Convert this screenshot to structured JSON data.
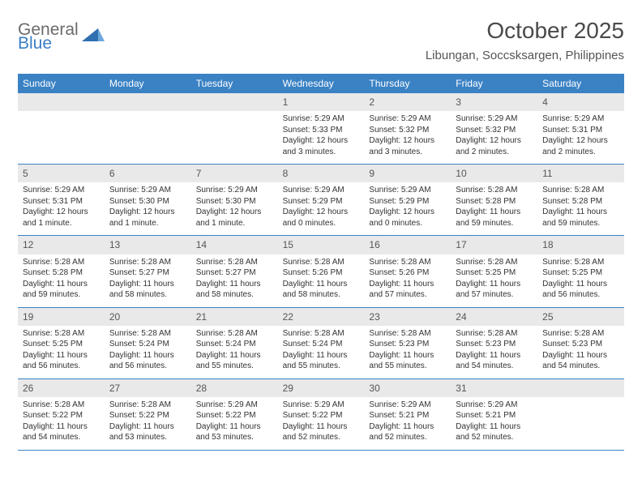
{
  "logo": {
    "line1": "General",
    "line2": "Blue"
  },
  "title": "October 2025",
  "location": "Libungan, Soccsksargen, Philippines",
  "colors": {
    "header_bg": "#3b82c4",
    "header_text": "#ffffff",
    "daynum_bg": "#e9e9e9",
    "week_border": "#3b82c4",
    "body_text": "#333333",
    "title_text": "#4a4a4a",
    "logo_gray": "#6b6b6b",
    "logo_blue": "#3b7fc4"
  },
  "day_labels": [
    "Sunday",
    "Monday",
    "Tuesday",
    "Wednesday",
    "Thursday",
    "Friday",
    "Saturday"
  ],
  "weeks": [
    [
      {
        "n": "",
        "empty": true
      },
      {
        "n": "",
        "empty": true
      },
      {
        "n": "",
        "empty": true
      },
      {
        "n": "1",
        "sunrise": "Sunrise: 5:29 AM",
        "sunset": "Sunset: 5:33 PM",
        "daylight": "Daylight: 12 hours and 3 minutes."
      },
      {
        "n": "2",
        "sunrise": "Sunrise: 5:29 AM",
        "sunset": "Sunset: 5:32 PM",
        "daylight": "Daylight: 12 hours and 3 minutes."
      },
      {
        "n": "3",
        "sunrise": "Sunrise: 5:29 AM",
        "sunset": "Sunset: 5:32 PM",
        "daylight": "Daylight: 12 hours and 2 minutes."
      },
      {
        "n": "4",
        "sunrise": "Sunrise: 5:29 AM",
        "sunset": "Sunset: 5:31 PM",
        "daylight": "Daylight: 12 hours and 2 minutes."
      }
    ],
    [
      {
        "n": "5",
        "sunrise": "Sunrise: 5:29 AM",
        "sunset": "Sunset: 5:31 PM",
        "daylight": "Daylight: 12 hours and 1 minute."
      },
      {
        "n": "6",
        "sunrise": "Sunrise: 5:29 AM",
        "sunset": "Sunset: 5:30 PM",
        "daylight": "Daylight: 12 hours and 1 minute."
      },
      {
        "n": "7",
        "sunrise": "Sunrise: 5:29 AM",
        "sunset": "Sunset: 5:30 PM",
        "daylight": "Daylight: 12 hours and 1 minute."
      },
      {
        "n": "8",
        "sunrise": "Sunrise: 5:29 AM",
        "sunset": "Sunset: 5:29 PM",
        "daylight": "Daylight: 12 hours and 0 minutes."
      },
      {
        "n": "9",
        "sunrise": "Sunrise: 5:29 AM",
        "sunset": "Sunset: 5:29 PM",
        "daylight": "Daylight: 12 hours and 0 minutes."
      },
      {
        "n": "10",
        "sunrise": "Sunrise: 5:28 AM",
        "sunset": "Sunset: 5:28 PM",
        "daylight": "Daylight: 11 hours and 59 minutes."
      },
      {
        "n": "11",
        "sunrise": "Sunrise: 5:28 AM",
        "sunset": "Sunset: 5:28 PM",
        "daylight": "Daylight: 11 hours and 59 minutes."
      }
    ],
    [
      {
        "n": "12",
        "sunrise": "Sunrise: 5:28 AM",
        "sunset": "Sunset: 5:28 PM",
        "daylight": "Daylight: 11 hours and 59 minutes."
      },
      {
        "n": "13",
        "sunrise": "Sunrise: 5:28 AM",
        "sunset": "Sunset: 5:27 PM",
        "daylight": "Daylight: 11 hours and 58 minutes."
      },
      {
        "n": "14",
        "sunrise": "Sunrise: 5:28 AM",
        "sunset": "Sunset: 5:27 PM",
        "daylight": "Daylight: 11 hours and 58 minutes."
      },
      {
        "n": "15",
        "sunrise": "Sunrise: 5:28 AM",
        "sunset": "Sunset: 5:26 PM",
        "daylight": "Daylight: 11 hours and 58 minutes."
      },
      {
        "n": "16",
        "sunrise": "Sunrise: 5:28 AM",
        "sunset": "Sunset: 5:26 PM",
        "daylight": "Daylight: 11 hours and 57 minutes."
      },
      {
        "n": "17",
        "sunrise": "Sunrise: 5:28 AM",
        "sunset": "Sunset: 5:25 PM",
        "daylight": "Daylight: 11 hours and 57 minutes."
      },
      {
        "n": "18",
        "sunrise": "Sunrise: 5:28 AM",
        "sunset": "Sunset: 5:25 PM",
        "daylight": "Daylight: 11 hours and 56 minutes."
      }
    ],
    [
      {
        "n": "19",
        "sunrise": "Sunrise: 5:28 AM",
        "sunset": "Sunset: 5:25 PM",
        "daylight": "Daylight: 11 hours and 56 minutes."
      },
      {
        "n": "20",
        "sunrise": "Sunrise: 5:28 AM",
        "sunset": "Sunset: 5:24 PM",
        "daylight": "Daylight: 11 hours and 56 minutes."
      },
      {
        "n": "21",
        "sunrise": "Sunrise: 5:28 AM",
        "sunset": "Sunset: 5:24 PM",
        "daylight": "Daylight: 11 hours and 55 minutes."
      },
      {
        "n": "22",
        "sunrise": "Sunrise: 5:28 AM",
        "sunset": "Sunset: 5:24 PM",
        "daylight": "Daylight: 11 hours and 55 minutes."
      },
      {
        "n": "23",
        "sunrise": "Sunrise: 5:28 AM",
        "sunset": "Sunset: 5:23 PM",
        "daylight": "Daylight: 11 hours and 55 minutes."
      },
      {
        "n": "24",
        "sunrise": "Sunrise: 5:28 AM",
        "sunset": "Sunset: 5:23 PM",
        "daylight": "Daylight: 11 hours and 54 minutes."
      },
      {
        "n": "25",
        "sunrise": "Sunrise: 5:28 AM",
        "sunset": "Sunset: 5:23 PM",
        "daylight": "Daylight: 11 hours and 54 minutes."
      }
    ],
    [
      {
        "n": "26",
        "sunrise": "Sunrise: 5:28 AM",
        "sunset": "Sunset: 5:22 PM",
        "daylight": "Daylight: 11 hours and 54 minutes."
      },
      {
        "n": "27",
        "sunrise": "Sunrise: 5:28 AM",
        "sunset": "Sunset: 5:22 PM",
        "daylight": "Daylight: 11 hours and 53 minutes."
      },
      {
        "n": "28",
        "sunrise": "Sunrise: 5:29 AM",
        "sunset": "Sunset: 5:22 PM",
        "daylight": "Daylight: 11 hours and 53 minutes."
      },
      {
        "n": "29",
        "sunrise": "Sunrise: 5:29 AM",
        "sunset": "Sunset: 5:22 PM",
        "daylight": "Daylight: 11 hours and 52 minutes."
      },
      {
        "n": "30",
        "sunrise": "Sunrise: 5:29 AM",
        "sunset": "Sunset: 5:21 PM",
        "daylight": "Daylight: 11 hours and 52 minutes."
      },
      {
        "n": "31",
        "sunrise": "Sunrise: 5:29 AM",
        "sunset": "Sunset: 5:21 PM",
        "daylight": "Daylight: 11 hours and 52 minutes."
      },
      {
        "n": "",
        "empty": true
      }
    ]
  ]
}
